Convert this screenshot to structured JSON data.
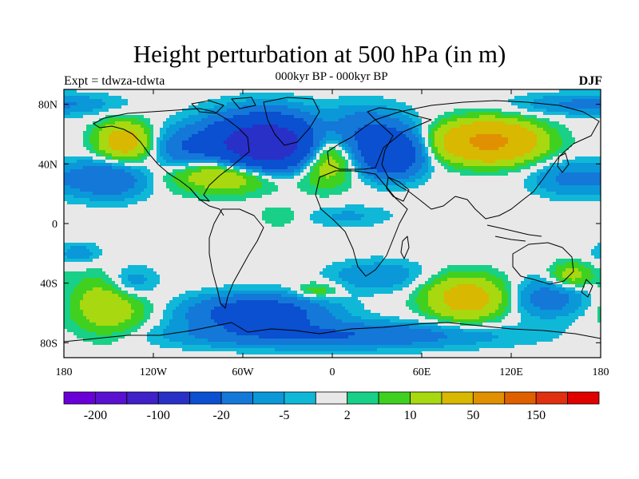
{
  "figure": {
    "title": "Height perturbation at 500 hPa (in m)",
    "subtitle": "000kyr BP - 000kyr BP",
    "left_label": "Expt = tdwza-tdwta",
    "right_label": "DJF"
  },
  "axes": {
    "x_ticks": [
      {
        "value": -180,
        "label": "180"
      },
      {
        "value": -120,
        "label": "120W"
      },
      {
        "value": -60,
        "label": "60W"
      },
      {
        "value": 0,
        "label": "0"
      },
      {
        "value": 60,
        "label": "60E"
      },
      {
        "value": 120,
        "label": "120E"
      },
      {
        "value": 180,
        "label": "180"
      }
    ],
    "y_ticks": [
      {
        "value": 80,
        "label": "80N"
      },
      {
        "value": 40,
        "label": "40N"
      },
      {
        "value": 0,
        "label": "0"
      },
      {
        "value": -40,
        "label": "40S"
      },
      {
        "value": -80,
        "label": "80S"
      }
    ],
    "lon_range": [
      -180,
      180
    ],
    "lat_range": [
      -90,
      90
    ]
  },
  "colorbar": {
    "colors": [
      "#6a00d8",
      "#5a10d0",
      "#4020c8",
      "#2830c8",
      "#0a50d0",
      "#1478d8",
      "#0a98d8",
      "#10b8d8",
      "#e8e8e8",
      "#18d088",
      "#40d020",
      "#a8d810",
      "#d8b800",
      "#e09000",
      "#e06000",
      "#e03010",
      "#e00000"
    ],
    "labels": [
      {
        "index": 1,
        "text": "-200"
      },
      {
        "index": 3,
        "text": "-100"
      },
      {
        "index": 5,
        "text": "-20"
      },
      {
        "index": 7,
        "text": "-5"
      },
      {
        "index": 9,
        "text": "2"
      },
      {
        "index": 11,
        "text": "10"
      },
      {
        "index": 13,
        "text": "50"
      },
      {
        "index": 15,
        "text": "150"
      }
    ]
  },
  "chart_data": {
    "type": "heatmap",
    "title": "Height perturbation at 500 hPa (in m)",
    "subtitle": "000kyr BP - 000kyr BP",
    "xlim": [
      -180,
      180
    ],
    "ylim": [
      -90,
      90
    ],
    "background_value": 0,
    "features": [
      {
        "lon": -45,
        "lat": 52,
        "peak": -90,
        "sx": 26,
        "sy": 13
      },
      {
        "lon": 40,
        "lat": 46,
        "peak": -40,
        "sx": 14,
        "sy": 10
      },
      {
        "lon": 20,
        "lat": 60,
        "peak": -20,
        "sx": 22,
        "sy": 12
      },
      {
        "lon": -65,
        "lat": 35,
        "peak": 35,
        "sx": 28,
        "sy": 9
      },
      {
        "lon": -5,
        "lat": 48,
        "peak": 35,
        "sx": 14,
        "sy": 13
      },
      {
        "lon": 105,
        "lat": 55,
        "peak": 60,
        "sx": 22,
        "sy": 9
      },
      {
        "lon": -140,
        "lat": 55,
        "peak": 30,
        "sx": 12,
        "sy": 9
      },
      {
        "lon": -150,
        "lat": 30,
        "peak": -20,
        "sx": 18,
        "sy": 9
      },
      {
        "lon": -100,
        "lat": 48,
        "peak": -15,
        "sx": 14,
        "sy": 10
      },
      {
        "lon": 170,
        "lat": 80,
        "peak": -12,
        "sx": 30,
        "sy": 5
      },
      {
        "lon": 160,
        "lat": 30,
        "peak": -12,
        "sx": 18,
        "sy": 8
      },
      {
        "lon": -35,
        "lat": 5,
        "peak": 5,
        "sx": 10,
        "sy": 5
      },
      {
        "lon": 10,
        "lat": 5,
        "peak": -6,
        "sx": 20,
        "sy": 5
      },
      {
        "lon": -150,
        "lat": -55,
        "peak": 18,
        "sx": 18,
        "sy": 14
      },
      {
        "lon": -135,
        "lat": -40,
        "peak": -12,
        "sx": 12,
        "sy": 8
      },
      {
        "lon": -50,
        "lat": -60,
        "peak": -35,
        "sx": 30,
        "sy": 8
      },
      {
        "lon": -10,
        "lat": -45,
        "peak": 10,
        "sx": 10,
        "sy": 4
      },
      {
        "lon": 30,
        "lat": -35,
        "peak": -10,
        "sx": 22,
        "sy": 7
      },
      {
        "lon": 90,
        "lat": -50,
        "peak": 30,
        "sx": 18,
        "sy": 10
      },
      {
        "lon": 145,
        "lat": -50,
        "peak": -15,
        "sx": 18,
        "sy": 9
      },
      {
        "lon": 0,
        "lat": -75,
        "peak": -20,
        "sx": 70,
        "sy": 6
      },
      {
        "lon": 160,
        "lat": -35,
        "peak": 15,
        "sx": 10,
        "sy": 6
      },
      {
        "lon": -170,
        "lat": -20,
        "peak": -8,
        "sx": 10,
        "sy": 5
      }
    ],
    "levels": [
      -200,
      -150,
      -100,
      -50,
      -20,
      -10,
      -5,
      -2,
      2,
      5,
      10,
      20,
      50,
      100,
      150,
      200
    ]
  }
}
